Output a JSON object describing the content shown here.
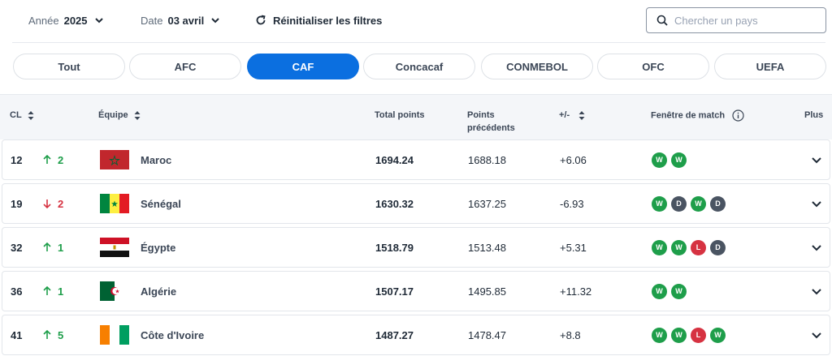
{
  "filters": {
    "year_label": "Année",
    "year_value": "2025",
    "date_label": "Date",
    "date_value": "03 avril",
    "reset_label": "Réinitialiser les filtres"
  },
  "search": {
    "placeholder": "Chercher un pays"
  },
  "tabs": [
    {
      "label": "Tout",
      "active": false
    },
    {
      "label": "AFC",
      "active": false
    },
    {
      "label": "CAF",
      "active": true
    },
    {
      "label": "Concacaf",
      "active": false
    },
    {
      "label": "CONMEBOL",
      "active": false
    },
    {
      "label": "OFC",
      "active": false
    },
    {
      "label": "UEFA",
      "active": false
    }
  ],
  "columns": {
    "rank": "CL",
    "team": "Équipe",
    "total": "Total points",
    "previous_line1": "Points",
    "previous_line2": "précédents",
    "diff": "+/-",
    "form": "Fenêtre de match",
    "more": "Plus"
  },
  "colors": {
    "accent": "#0b6fe0",
    "win": "#1e9e4a",
    "draw": "#4a5462",
    "loss": "#d63241"
  },
  "rows": [
    {
      "rank": "12",
      "move": "2",
      "dir": "up",
      "team": "Maroc",
      "flag": "morocco",
      "total": "1694.24",
      "previous": "1688.18",
      "diff": "+6.06",
      "form": [
        "W",
        "W"
      ]
    },
    {
      "rank": "19",
      "move": "2",
      "dir": "down",
      "team": "Sénégal",
      "flag": "senegal",
      "total": "1630.32",
      "previous": "1637.25",
      "diff": "-6.93",
      "form": [
        "W",
        "D",
        "W",
        "D"
      ]
    },
    {
      "rank": "32",
      "move": "1",
      "dir": "up",
      "team": "Égypte",
      "flag": "egypt",
      "total": "1518.79",
      "previous": "1513.48",
      "diff": "+5.31",
      "form": [
        "W",
        "W",
        "L",
        "D"
      ]
    },
    {
      "rank": "36",
      "move": "1",
      "dir": "up",
      "team": "Algérie",
      "flag": "algeria",
      "total": "1507.17",
      "previous": "1495.85",
      "diff": "+11.32",
      "form": [
        "W",
        "W"
      ]
    },
    {
      "rank": "41",
      "move": "5",
      "dir": "up",
      "team": "Côte d'Ivoire",
      "flag": "ivory-coast",
      "total": "1487.27",
      "previous": "1478.47",
      "diff": "+8.8",
      "form": [
        "W",
        "W",
        "L",
        "W"
      ]
    }
  ]
}
